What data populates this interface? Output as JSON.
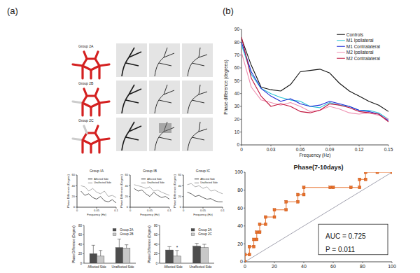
{
  "figure": {
    "panel_labels": [
      "(a)",
      "(b)"
    ],
    "groups": [
      "Group 2A",
      "Group 2B",
      "Group 2C"
    ]
  },
  "chart_data": [
    {
      "type": "line",
      "title": "Group IA",
      "x_label": "Frequency (Hz)",
      "y_label": "Phase Difference (Degree)",
      "x": [
        0.01,
        0.02,
        0.03,
        0.04,
        0.05,
        0.06,
        0.07,
        0.08,
        0.09,
        0.1
      ],
      "xlim": [
        0,
        0.1
      ],
      "xticks": [
        0,
        0.05,
        0.1
      ],
      "ylim": [
        0,
        60
      ],
      "yticks": [
        0,
        20,
        40,
        60
      ],
      "legend": "top-right",
      "series": [
        {
          "name": "Affected Side",
          "color": "#3a3a3a",
          "values": [
            30,
            22,
            25,
            18,
            15,
            20,
            12,
            10,
            14,
            8
          ]
        },
        {
          "name": "Unaffected Side",
          "color": "#9a9a9a",
          "values": [
            40,
            38,
            30,
            35,
            28,
            25,
            30,
            20,
            22,
            18
          ]
        }
      ]
    },
    {
      "type": "line",
      "title": "Group IB",
      "x_label": "Frequency (Hz)",
      "y_label": "Phase Difference (Degree)",
      "x": [
        0.01,
        0.02,
        0.03,
        0.04,
        0.05,
        0.06,
        0.07,
        0.08,
        0.09,
        0.1
      ],
      "xlim": [
        0,
        0.1
      ],
      "xticks": [
        0,
        0.05,
        0.1
      ],
      "ylim": [
        0,
        60
      ],
      "yticks": [
        0,
        20,
        40,
        60
      ],
      "legend": "top-right",
      "series": [
        {
          "name": "Affected Side",
          "color": "#3a3a3a",
          "values": [
            35,
            30,
            32,
            25,
            20,
            28,
            22,
            18,
            20,
            15
          ]
        },
        {
          "name": "Unaffected Side",
          "color": "#9a9a9a",
          "values": [
            42,
            40,
            38,
            35,
            38,
            30,
            32,
            28,
            25,
            22
          ]
        }
      ]
    },
    {
      "type": "line",
      "title": "Group IC",
      "x_label": "Frequency (Hz)",
      "y_label": "Phase Difference (Degree)",
      "x": [
        0.01,
        0.02,
        0.03,
        0.04,
        0.05,
        0.06,
        0.07,
        0.08,
        0.09,
        0.1
      ],
      "xlim": [
        0,
        0.1
      ],
      "xticks": [
        0,
        0.05,
        0.1
      ],
      "ylim": [
        0,
        60
      ],
      "yticks": [
        0,
        20,
        40,
        60
      ],
      "legend": "top-right",
      "series": [
        {
          "name": "Affected Side",
          "color": "#3a3a3a",
          "values": [
            28,
            25,
            20,
            22,
            18,
            15,
            16,
            12,
            10,
            10
          ]
        },
        {
          "name": "Unaffected Side",
          "color": "#9a9a9a",
          "values": [
            42,
            44,
            38,
            40,
            35,
            38,
            30,
            32,
            28,
            25
          ]
        }
      ]
    },
    {
      "type": "bar",
      "y_label": "Phase Difference (Degree)",
      "categories": [
        "Affected Side",
        "Unaffected Side"
      ],
      "ylim": [
        0,
        80
      ],
      "yticks": [
        0,
        20,
        40,
        60,
        80
      ],
      "legend": "top-right",
      "series": [
        {
          "name": "Group 2A",
          "color": "#4d4d4d",
          "values": [
            20,
            33
          ],
          "errors": [
            18,
            18
          ]
        },
        {
          "name": "Group 2B",
          "color": "#c8c8c8",
          "values": [
            15,
            32
          ],
          "errors": [
            12,
            7
          ]
        }
      ]
    },
    {
      "type": "bar",
      "y_label": "Phase Difference (Degree)",
      "categories": [
        "Affected Side",
        "Unaffected Side"
      ],
      "ylim": [
        0,
        80
      ],
      "yticks": [
        0,
        20,
        40,
        60,
        80
      ],
      "legend": "top-right",
      "annotations": [
        "*"
      ],
      "series": [
        {
          "name": "Group 2A",
          "color": "#4d4d4d",
          "values": [
            28,
            36
          ],
          "errors": [
            7,
            6
          ]
        },
        {
          "name": "Group 2C",
          "color": "#c8c8c8",
          "values": [
            15,
            33
          ],
          "errors": [
            12,
            7
          ]
        }
      ]
    },
    {
      "type": "line",
      "x_label": "Frequency (Hz)",
      "y_label": "Phase difference (degrees)",
      "x": [
        0,
        0.01,
        0.02,
        0.03,
        0.04,
        0.05,
        0.06,
        0.07,
        0.08,
        0.09,
        0.1,
        0.11,
        0.12,
        0.13,
        0.14,
        0.15
      ],
      "xlim": [
        0,
        0.15
      ],
      "xticks": [
        0,
        0.03,
        0.06,
        0.09,
        0.12,
        0.15
      ],
      "ylim": [
        0,
        90
      ],
      "yticks": [
        0,
        10,
        20,
        30,
        40,
        50,
        60,
        70,
        80,
        90
      ],
      "legend": "top-right",
      "series": [
        {
          "name": "Controls",
          "color": "#111111",
          "values": [
            83,
            62,
            45,
            43,
            42,
            47,
            57,
            58,
            59,
            56,
            48,
            42,
            38,
            34,
            31,
            26
          ]
        },
        {
          "name": "M1 Ipsilateral",
          "color": "#2ec4d6",
          "values": [
            78,
            55,
            44,
            40,
            37,
            35,
            34,
            30,
            29,
            33,
            31,
            30,
            27,
            27,
            25,
            20
          ]
        },
        {
          "name": "M1 Contralateral",
          "color": "#1f2bd6",
          "values": [
            80,
            57,
            44,
            38,
            34,
            36,
            32,
            30,
            31,
            34,
            32,
            30,
            27,
            26,
            24,
            19
          ]
        },
        {
          "name": "M2 Ipsilateral",
          "color": "#ee8fb0",
          "values": [
            72,
            45,
            35,
            33,
            31,
            33,
            30,
            26,
            27,
            30,
            28,
            25,
            24,
            25,
            23,
            20
          ]
        },
        {
          "name": "M2 Contralateral",
          "color": "#c0143c",
          "values": [
            84,
            52,
            38,
            30,
            32,
            30,
            26,
            25,
            27,
            32,
            31,
            29,
            26,
            25,
            24,
            18
          ]
        }
      ]
    },
    {
      "type": "line",
      "title": "Phase(7-10days)",
      "annotations": [
        "AUC = 0.725",
        "P = 0.011"
      ],
      "x": [
        0,
        0,
        3,
        3,
        6,
        6,
        8,
        8,
        10,
        10,
        14,
        14,
        20,
        20,
        28,
        28,
        36,
        36,
        40,
        40,
        58,
        60,
        72,
        78,
        78,
        82,
        82,
        90,
        100
      ],
      "xlim": [
        0,
        100
      ],
      "xticks": [
        0,
        20,
        40,
        60,
        80,
        100
      ],
      "ylim": [
        0,
        100
      ],
      "yticks": [
        0,
        20,
        40,
        60,
        80,
        100
      ],
      "series": [
        {
          "color": "#e8702a",
          "marker": "square",
          "values": [
            0,
            8,
            8,
            17,
            17,
            25,
            25,
            33,
            33,
            42,
            42,
            50,
            50,
            58,
            58,
            67,
            67,
            75,
            75,
            83,
            83,
            83,
            83,
            83,
            92,
            92,
            100,
            100,
            100
          ]
        }
      ]
    }
  ]
}
